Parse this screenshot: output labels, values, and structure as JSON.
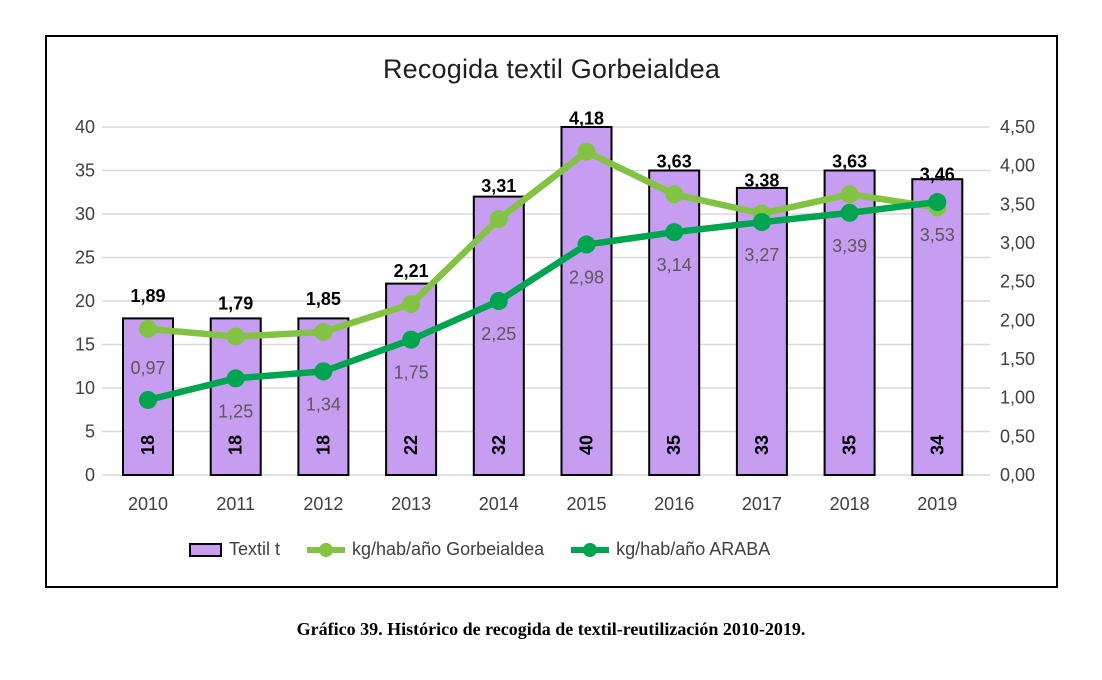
{
  "figure": {
    "title": "Recogida textil Gorbeialdea",
    "caption": "Gráfico 39. Histórico de recogida de textil-reutilización 2010-2019."
  },
  "legend": {
    "position": "bottom",
    "items": [
      {
        "label": "Textil t",
        "swatch": "bar",
        "color": "#C79DF2",
        "border": "#000000"
      },
      {
        "label": "kg/hab/año Gorbeialdea",
        "swatch": "line",
        "color": "#82C341"
      },
      {
        "label": "kg/hab/año ARABA",
        "swatch": "line",
        "color": "#00A550"
      }
    ]
  },
  "chart_data": {
    "type": "bar",
    "subtype": "combo: bars on left axis + two line series on right axis",
    "title": "Recogida textil Gorbeialdea",
    "categories": [
      "2010",
      "2011",
      "2012",
      "2013",
      "2014",
      "2015",
      "2016",
      "2017",
      "2018",
      "2019"
    ],
    "series": [
      {
        "name": "Textil t",
        "kind": "bar",
        "axis": "left",
        "color": "#C79DF2",
        "border_color": "#000000",
        "values": [
          18,
          18,
          18,
          22,
          32,
          40,
          35,
          33,
          35,
          34
        ],
        "labels": [
          "18",
          "18",
          "18",
          "22",
          "32",
          "40",
          "35",
          "33",
          "35",
          "34"
        ],
        "label_style": "bold black, rotated 90°, inside bar near bottom"
      },
      {
        "name": "kg/hab/año Gorbeialdea",
        "kind": "line",
        "axis": "right",
        "color": "#82C341",
        "values": [
          1.89,
          1.79,
          1.85,
          2.21,
          3.31,
          4.18,
          3.63,
          3.38,
          3.63,
          3.46
        ],
        "labels": [
          "1,89",
          "1,79",
          "1,85",
          "2,21",
          "3,31",
          "4,18",
          "3,63",
          "3,38",
          "3,63",
          "3,46"
        ],
        "label_positions": [
          "above",
          "above",
          "above",
          "above",
          "above",
          "above",
          "above",
          "above",
          "above",
          "above"
        ],
        "label_style": "bold black, above point"
      },
      {
        "name": "kg/hab/año ARABA",
        "kind": "line",
        "axis": "right",
        "color": "#00A550",
        "values": [
          0.97,
          1.25,
          1.34,
          1.75,
          2.25,
          2.98,
          3.14,
          3.27,
          3.39,
          3.53
        ],
        "labels": [
          "0,97",
          "1,25",
          "1,34",
          "1,75",
          "2,25",
          "2,98",
          "3,14",
          "3,27",
          "3,39",
          "3,53"
        ],
        "label_positions": [
          "above",
          "below",
          "below",
          "below",
          "below",
          "below",
          "below",
          "below",
          "below",
          "below"
        ],
        "label_style": "gray #595959"
      }
    ],
    "left_axis": {
      "min": 0,
      "max": 40,
      "step": 5,
      "tick_labels": [
        "0",
        "5",
        "10",
        "15",
        "20",
        "25",
        "30",
        "35",
        "40"
      ]
    },
    "right_axis": {
      "min": 0,
      "max": 4.5,
      "step": 0.5,
      "tick_labels": [
        "0,00",
        "0,50",
        "1,00",
        "1,50",
        "2,00",
        "2,50",
        "3,00",
        "3,50",
        "4,00",
        "4,50"
      ]
    },
    "grid": true,
    "gridline_color": "#D9D9D9",
    "tick_label_color": "#404040",
    "legend_position": "bottom"
  }
}
